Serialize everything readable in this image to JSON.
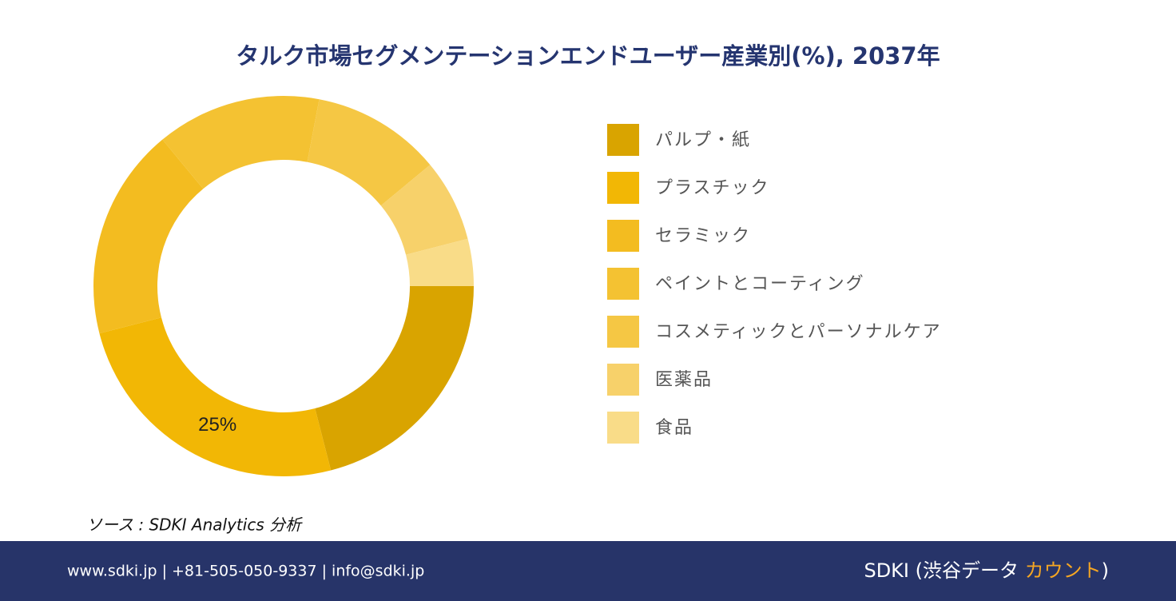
{
  "chart_data": {
    "type": "donut",
    "title": "タルク市場セグメンテーションエンドユーザー産業別(%), 2037年",
    "categories": [
      "パルプ・紙",
      "プラスチック",
      "セラミック",
      "ペイントとコーティング",
      "コスメティックとパーソナルケア",
      "医薬品",
      "食品"
    ],
    "values": [
      21,
      25,
      18,
      14,
      11,
      7,
      4
    ],
    "value_labels": [
      null,
      "25%",
      null,
      null,
      null,
      null,
      null
    ],
    "colors": [
      "#d9a400",
      "#f2b705",
      "#f3bc20",
      "#f4c232",
      "#f5c744",
      "#f7d16a",
      "#f9dc88"
    ],
    "source": "ソース : SDKI Analytics 分析"
  },
  "footer": {
    "contact": "www.sdki.jp | +81-505-050-9337 | info@sdki.jp",
    "brand": "SDKI (渋谷データ",
    "brand_accent": "カウント",
    "brand_end": ")"
  }
}
